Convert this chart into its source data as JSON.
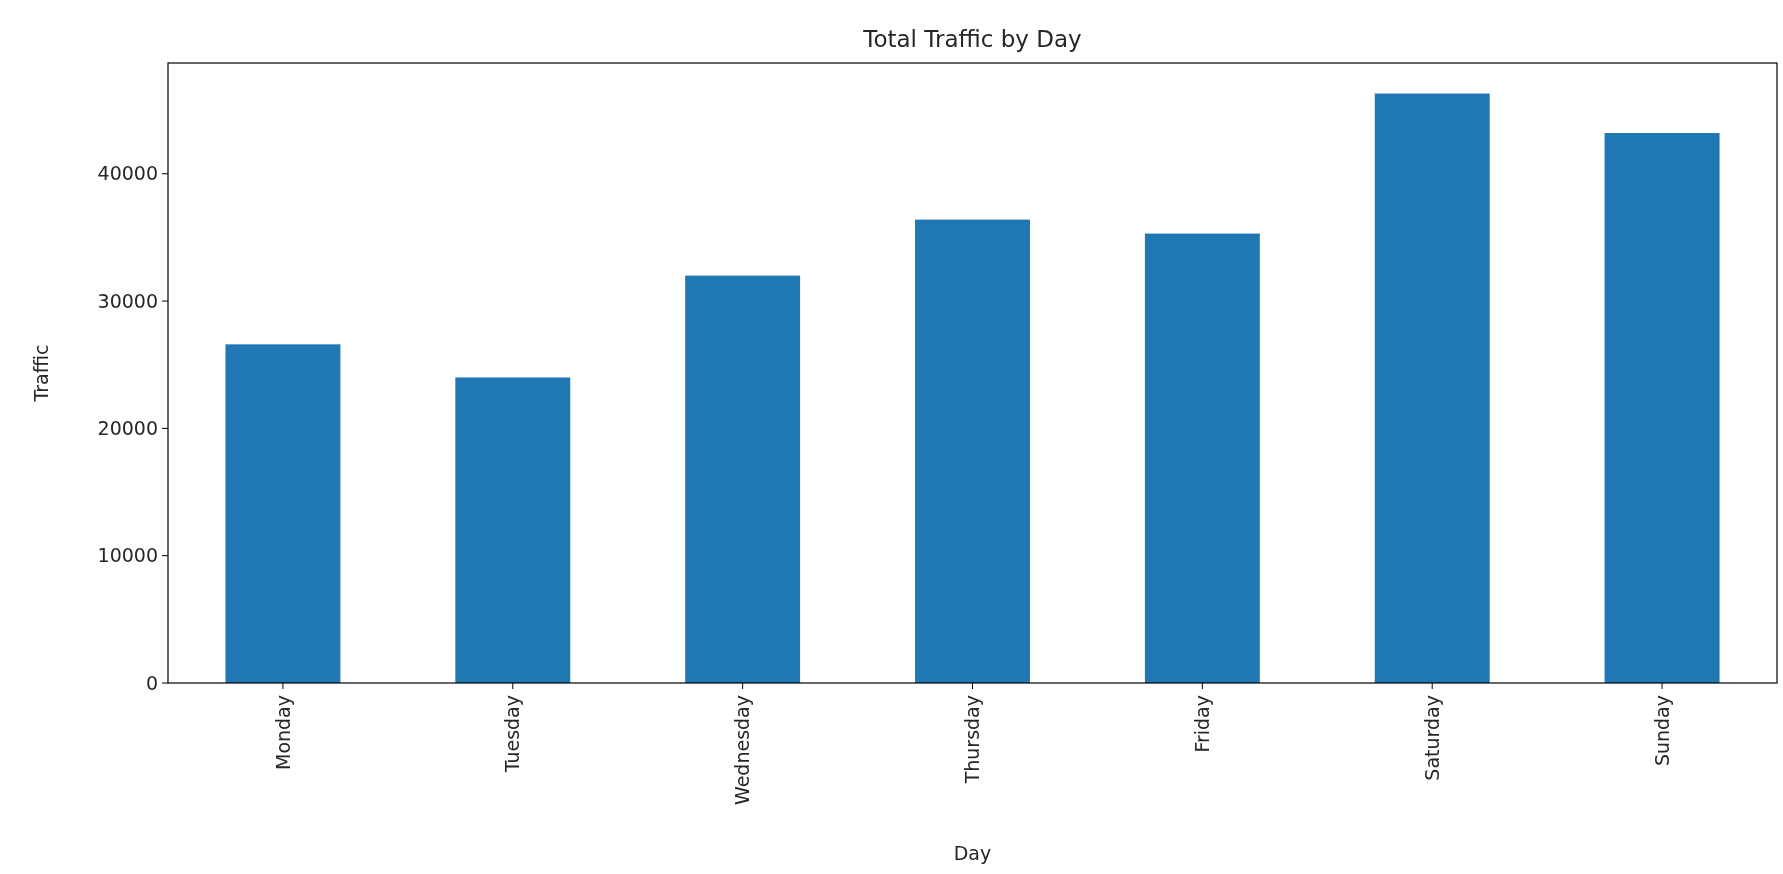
{
  "chart_data": {
    "type": "bar",
    "title": "Total Traffic by Day",
    "xlabel": "Day",
    "ylabel": "Traffic",
    "categories": [
      "Monday",
      "Tuesday",
      "Wednesday",
      "Thursday",
      "Friday",
      "Saturday",
      "Sunday"
    ],
    "values": [
      26600,
      24000,
      32000,
      36400,
      35300,
      46300,
      43200
    ],
    "color": "#1f77b4",
    "ylim": [
      0,
      48700
    ],
    "yticks": [
      0,
      10000,
      20000,
      30000,
      40000
    ],
    "grid": false
  }
}
